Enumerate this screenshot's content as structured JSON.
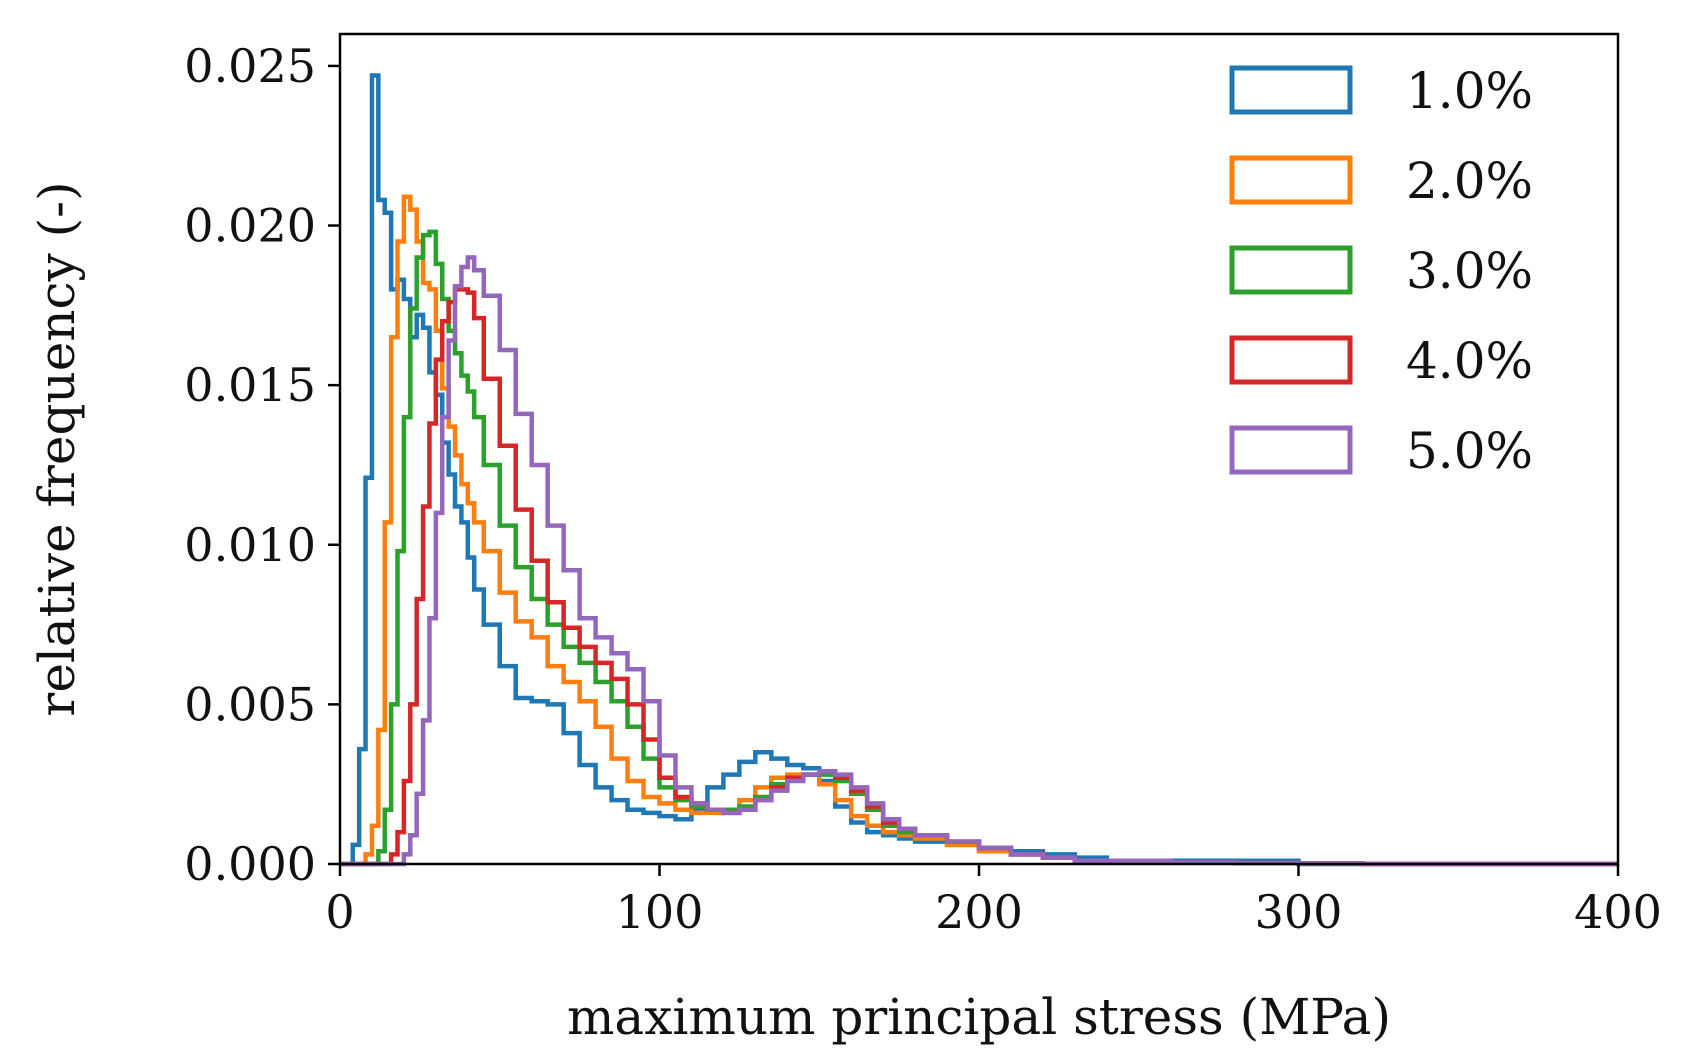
{
  "chart_data": {
    "type": "histogram-step",
    "title": "",
    "xlabel": "maximum principal stress (MPa)",
    "ylabel": "relative frequency (-)",
    "xlim": [
      0,
      400
    ],
    "ylim": [
      0,
      0.026
    ],
    "xticks": [
      0,
      100,
      200,
      300,
      400
    ],
    "xtick_labels": [
      "0",
      "100",
      "200",
      "300",
      "400"
    ],
    "yticks": [
      0.0,
      0.005,
      0.01,
      0.015,
      0.02,
      0.025
    ],
    "ytick_labels": [
      "0.000",
      "0.005",
      "0.010",
      "0.015",
      "0.020",
      "0.025"
    ],
    "grid": false,
    "legend_position": "top-right",
    "series": [
      {
        "name": "1.0%",
        "color": "#1f77b4",
        "x": [
          0,
          2,
          4,
          6,
          8,
          10,
          12,
          14,
          16,
          18,
          20,
          22,
          24,
          26,
          28,
          30,
          32,
          34,
          36,
          38,
          40,
          42,
          45,
          50,
          55,
          60,
          65,
          70,
          75,
          80,
          85,
          90,
          95,
          100,
          105,
          110,
          115,
          120,
          125,
          130,
          135,
          140,
          145,
          150,
          155,
          160,
          165,
          170,
          175,
          180,
          190,
          200,
          210,
          220,
          230,
          240,
          260,
          280,
          300,
          320,
          350,
          400
        ],
        "y": [
          0,
          0,
          0.0006,
          0.0036,
          0.0121,
          0.0247,
          0.0208,
          0.0204,
          0.018,
          0.0183,
          0.0177,
          0.0165,
          0.0172,
          0.0168,
          0.0154,
          0.0147,
          0.0132,
          0.0122,
          0.0112,
          0.0107,
          0.0096,
          0.0086,
          0.0075,
          0.0062,
          0.0052,
          0.0051,
          0.005,
          0.0041,
          0.0031,
          0.0024,
          0.002,
          0.0017,
          0.0016,
          0.0015,
          0.0014,
          0.0017,
          0.0024,
          0.0028,
          0.0032,
          0.0035,
          0.0033,
          0.0031,
          0.003,
          0.0026,
          0.0018,
          0.0013,
          0.001,
          0.0009,
          0.0008,
          0.0007,
          0.0006,
          0.0005,
          0.0004,
          0.0003,
          0.0002,
          0.0001,
          0.0001,
          0.0001,
          0,
          0,
          0,
          0
        ]
      },
      {
        "name": "2.0%",
        "color": "#ff7f0e",
        "x": [
          0,
          6,
          8,
          10,
          12,
          14,
          16,
          18,
          20,
          22,
          24,
          26,
          28,
          30,
          32,
          34,
          36,
          38,
          40,
          42,
          45,
          50,
          55,
          60,
          65,
          70,
          75,
          80,
          85,
          90,
          95,
          100,
          105,
          110,
          115,
          120,
          125,
          130,
          135,
          140,
          145,
          150,
          155,
          160,
          165,
          170,
          175,
          180,
          190,
          200,
          210,
          220,
          230,
          240,
          260,
          280,
          300,
          320,
          350,
          400
        ],
        "y": [
          0,
          0,
          0.0003,
          0.0012,
          0.0042,
          0.0107,
          0.0165,
          0.0195,
          0.0209,
          0.0205,
          0.0195,
          0.0182,
          0.018,
          0.0167,
          0.0149,
          0.0137,
          0.0128,
          0.0119,
          0.0113,
          0.0107,
          0.0098,
          0.0085,
          0.0076,
          0.0071,
          0.0062,
          0.0057,
          0.0051,
          0.0043,
          0.0033,
          0.0026,
          0.0021,
          0.0019,
          0.0017,
          0.0016,
          0.0016,
          0.0017,
          0.002,
          0.0024,
          0.0027,
          0.0028,
          0.0028,
          0.0025,
          0.002,
          0.0015,
          0.0012,
          0.001,
          0.0009,
          0.0008,
          0.0006,
          0.0004,
          0.0003,
          0.0002,
          0.0001,
          0.0001,
          5e-05,
          3e-05,
          2e-05,
          0,
          0,
          0
        ]
      },
      {
        "name": "3.0%",
        "color": "#2ca02c",
        "x": [
          0,
          10,
          12,
          14,
          16,
          18,
          20,
          22,
          24,
          26,
          28,
          30,
          32,
          34,
          36,
          38,
          40,
          42,
          45,
          50,
          55,
          60,
          65,
          70,
          75,
          80,
          85,
          90,
          95,
          100,
          105,
          110,
          115,
          120,
          125,
          130,
          135,
          140,
          145,
          150,
          155,
          160,
          165,
          170,
          175,
          180,
          190,
          200,
          210,
          220,
          230,
          240,
          260,
          280,
          300,
          320,
          350,
          400
        ],
        "y": [
          0,
          0,
          0.0004,
          0.0017,
          0.005,
          0.0098,
          0.014,
          0.0174,
          0.019,
          0.0197,
          0.0198,
          0.0188,
          0.0177,
          0.0167,
          0.016,
          0.0153,
          0.0148,
          0.014,
          0.0125,
          0.0106,
          0.0093,
          0.0083,
          0.0075,
          0.0068,
          0.0063,
          0.0057,
          0.0051,
          0.0043,
          0.0033,
          0.0024,
          0.002,
          0.0018,
          0.0017,
          0.0017,
          0.0018,
          0.0021,
          0.0025,
          0.0027,
          0.0028,
          0.0028,
          0.0026,
          0.0022,
          0.0017,
          0.0012,
          0.001,
          0.0009,
          0.0007,
          0.0005,
          0.0003,
          0.0002,
          0.0001,
          0.0001,
          5e-05,
          3e-05,
          2e-05,
          0,
          0,
          0
        ]
      },
      {
        "name": "4.0%",
        "color": "#d62728",
        "x": [
          0,
          14,
          16,
          18,
          20,
          22,
          24,
          26,
          28,
          30,
          32,
          34,
          36,
          38,
          40,
          42,
          45,
          50,
          55,
          60,
          65,
          70,
          75,
          80,
          85,
          90,
          95,
          100,
          105,
          110,
          115,
          120,
          125,
          130,
          135,
          140,
          145,
          150,
          155,
          160,
          165,
          170,
          175,
          180,
          190,
          200,
          210,
          220,
          230,
          240,
          260,
          280,
          300,
          320,
          350,
          400
        ],
        "y": [
          0,
          0,
          0.0003,
          0.001,
          0.0026,
          0.005,
          0.0083,
          0.0112,
          0.0138,
          0.0158,
          0.017,
          0.0176,
          0.018,
          0.018,
          0.0179,
          0.0171,
          0.0152,
          0.0131,
          0.0111,
          0.0095,
          0.0082,
          0.0074,
          0.0068,
          0.0063,
          0.0058,
          0.005,
          0.0039,
          0.0027,
          0.0021,
          0.0019,
          0.0017,
          0.0016,
          0.0017,
          0.002,
          0.0024,
          0.0027,
          0.0028,
          0.0029,
          0.0027,
          0.0023,
          0.0018,
          0.0013,
          0.0011,
          0.0009,
          0.0007,
          0.0005,
          0.0003,
          0.0002,
          0.0001,
          0.0001,
          5e-05,
          3e-05,
          2e-05,
          0,
          0,
          0
        ]
      },
      {
        "name": "5.0%",
        "color": "#9467bd",
        "x": [
          0,
          18,
          20,
          22,
          24,
          26,
          28,
          30,
          32,
          34,
          36,
          38,
          40,
          42,
          45,
          50,
          55,
          60,
          65,
          70,
          75,
          80,
          85,
          90,
          95,
          100,
          105,
          110,
          115,
          120,
          125,
          130,
          135,
          140,
          145,
          150,
          155,
          160,
          165,
          170,
          175,
          180,
          190,
          200,
          210,
          220,
          230,
          240,
          260,
          280,
          300,
          320,
          350,
          400
        ],
        "y": [
          0,
          0,
          0.0003,
          0.0009,
          0.0022,
          0.0045,
          0.0077,
          0.011,
          0.014,
          0.0164,
          0.0181,
          0.0187,
          0.019,
          0.0186,
          0.0178,
          0.0161,
          0.0141,
          0.0125,
          0.0106,
          0.0092,
          0.0077,
          0.0071,
          0.0066,
          0.0061,
          0.0051,
          0.0034,
          0.0024,
          0.0019,
          0.0017,
          0.0016,
          0.0017,
          0.002,
          0.0023,
          0.0026,
          0.0028,
          0.0029,
          0.0028,
          0.0024,
          0.0019,
          0.0014,
          0.0011,
          0.0009,
          0.0007,
          0.0005,
          0.0003,
          0.0002,
          0.0001,
          0.0001,
          5e-05,
          3e-05,
          2e-05,
          0,
          0,
          0
        ]
      }
    ]
  }
}
